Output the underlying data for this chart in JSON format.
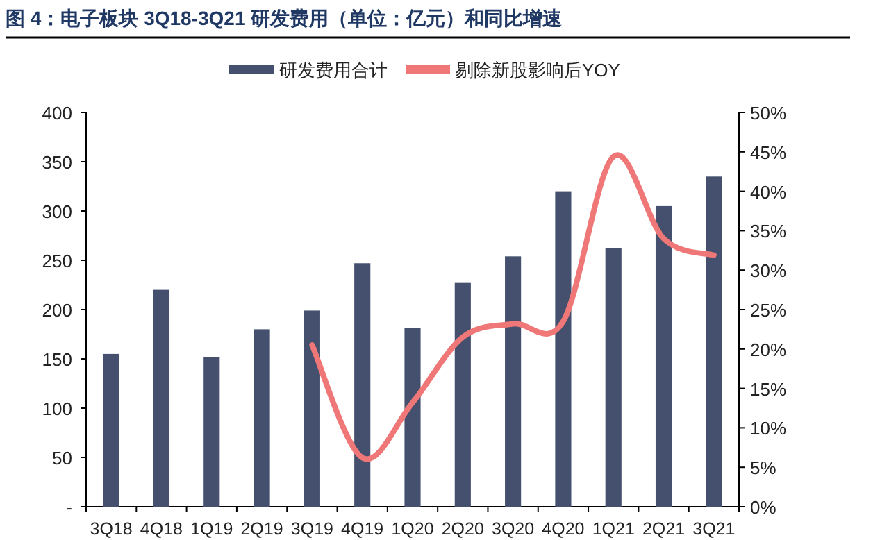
{
  "chart_data": {
    "type": "bar",
    "title": "图 4：电子板块 3Q18-3Q21 研发费用（单位：亿元）和同比增速",
    "categories": [
      "3Q18",
      "4Q18",
      "1Q19",
      "2Q19",
      "3Q19",
      "4Q19",
      "1Q20",
      "2Q20",
      "3Q20",
      "4Q20",
      "1Q21",
      "2Q21",
      "3Q21"
    ],
    "series": [
      {
        "name": "研发费用合计",
        "color": "#44506e",
        "values": [
          155,
          220,
          152,
          180,
          199,
          247,
          181,
          227,
          254,
          320,
          262,
          305,
          335
        ]
      },
      {
        "name": "剔除新股影响后YOY",
        "type": "line",
        "axis": "y2",
        "color": "#f07777",
        "values": [
          null,
          null,
          null,
          null,
          20.5,
          6.2,
          13.2,
          21.5,
          23.2,
          23.5,
          44.4,
          34,
          31.9
        ]
      }
    ],
    "ylim": [
      0,
      400
    ],
    "yticks": [
      {
        "value": 0,
        "label": "-"
      },
      50,
      100,
      150,
      200,
      250,
      300,
      350,
      400
    ],
    "y2lim": [
      0,
      50
    ],
    "y2ticks": [
      {
        "value": 0,
        "label": "0%"
      },
      {
        "value": 5,
        "label": "5%"
      },
      {
        "value": 10,
        "label": "10%"
      },
      {
        "value": 15,
        "label": "15%"
      },
      {
        "value": 20,
        "label": "20%"
      },
      {
        "value": 25,
        "label": "25%"
      },
      {
        "value": 30,
        "label": "30%"
      },
      {
        "value": 35,
        "label": "35%"
      },
      {
        "value": 40,
        "label": "40%"
      },
      {
        "value": 45,
        "label": "45%"
      },
      {
        "value": 50,
        "label": "50%"
      }
    ],
    "legend": "top",
    "grid": false,
    "marker": "none"
  }
}
